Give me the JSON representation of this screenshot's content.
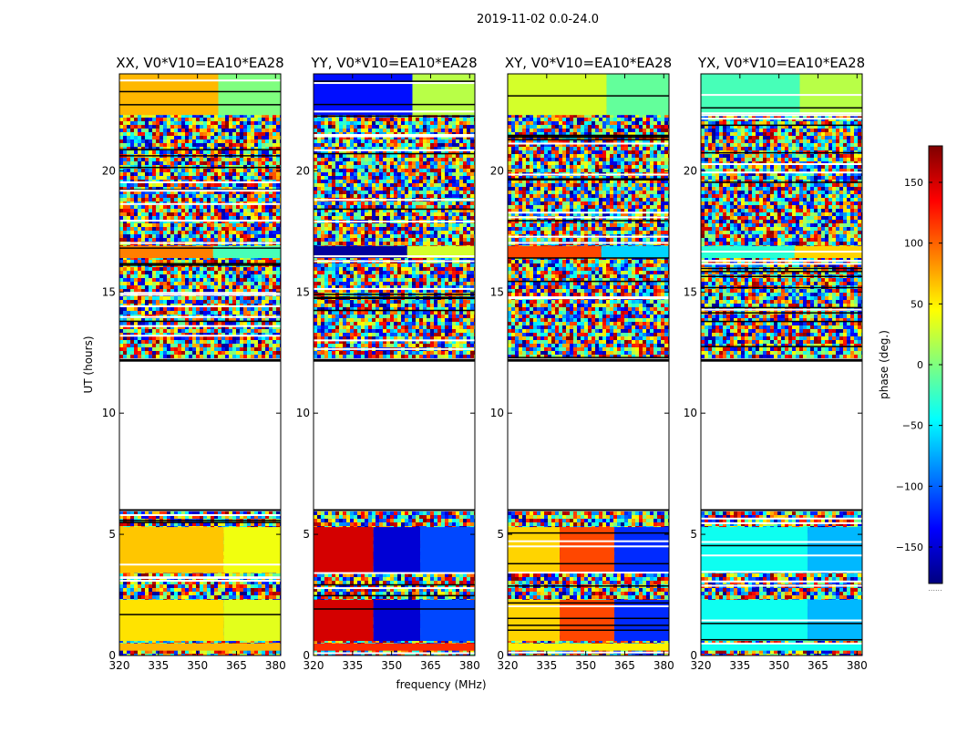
{
  "figure": {
    "suptitle": "2019-11-02 0.0-24.0"
  },
  "colors": {
    "jet": [
      "#00007f",
      "#0000ff",
      "#007fff",
      "#00ffff",
      "#7fff7f",
      "#ffff00",
      "#ff7f00",
      "#ff0000",
      "#7f0000"
    ]
  },
  "chart_data": {
    "type": "heatmap",
    "description_units": "phase in degrees vs frequency (MHz) and UT (hours)",
    "xlabel": "frequency (MHz)",
    "ylabel": "UT (hours)",
    "xlim": [
      320,
      382
    ],
    "ylim": [
      0,
      24
    ],
    "xticks": [
      320,
      335,
      350,
      365,
      380
    ],
    "yticks": [
      0,
      5,
      10,
      15,
      20
    ],
    "clim": [
      -180,
      180
    ],
    "colorbar": {
      "label": "phase (deg.)",
      "ticks": [
        150,
        100,
        50,
        0,
        -50,
        -100,
        -150
      ],
      "tick_labels": [
        "150",
        "100",
        "50",
        "0",
        "−50",
        "−100",
        "−150"
      ]
    },
    "colorbar_footer": "......",
    "data_gap_hours": [
      6.0,
      12.2
    ],
    "panels": [
      {
        "title": "XX, V0*V10=EA10*EA28",
        "bands": [
          {
            "t0": 0.2,
            "t1": 0.5,
            "segments": [
              {
                "f0": 320,
                "f1": 382,
                "phase": 70
              }
            ]
          },
          {
            "t0": 0.6,
            "t1": 2.3,
            "segments": [
              {
                "f0": 320,
                "f1": 360,
                "phase": 55
              },
              {
                "f0": 360,
                "f1": 382,
                "phase": 35
              }
            ]
          },
          {
            "t0": 3.4,
            "t1": 5.3,
            "segments": [
              {
                "f0": 320,
                "f1": 360,
                "phase": 65
              },
              {
                "f0": 360,
                "f1": 382,
                "phase": 40
              }
            ]
          },
          {
            "t0": 16.4,
            "t1": 16.9,
            "segments": [
              {
                "f0": 320,
                "f1": 356,
                "phase": 90
              },
              {
                "f0": 356,
                "f1": 382,
                "phase": -20
              }
            ]
          },
          {
            "t0": 22.3,
            "t1": 24.0,
            "segments": [
              {
                "f0": 320,
                "f1": 358,
                "phase": 70
              },
              {
                "f0": 358,
                "f1": 382,
                "phase": 0
              }
            ]
          }
        ]
      },
      {
        "title": "YY, V0*V10=EA10*EA28",
        "bands": [
          {
            "t0": 0.2,
            "t1": 0.5,
            "segments": [
              {
                "f0": 320,
                "f1": 382,
                "phase": 120
              }
            ]
          },
          {
            "t0": 0.6,
            "t1": 2.3,
            "segments": [
              {
                "f0": 320,
                "f1": 343,
                "phase": 150
              },
              {
                "f0": 343,
                "f1": 361,
                "phase": -150
              },
              {
                "f0": 361,
                "f1": 382,
                "phase": -110
              }
            ]
          },
          {
            "t0": 3.4,
            "t1": 5.3,
            "segments": [
              {
                "f0": 320,
                "f1": 343,
                "phase": 150
              },
              {
                "f0": 343,
                "f1": 361,
                "phase": -150
              },
              {
                "f0": 361,
                "f1": 382,
                "phase": -110
              }
            ]
          },
          {
            "t0": 16.4,
            "t1": 16.9,
            "segments": [
              {
                "f0": 320,
                "f1": 356,
                "phase": -170
              },
              {
                "f0": 356,
                "f1": 382,
                "phase": 30
              }
            ]
          },
          {
            "t0": 22.3,
            "t1": 24.0,
            "segments": [
              {
                "f0": 320,
                "f1": 358,
                "phase": -130
              },
              {
                "f0": 358,
                "f1": 382,
                "phase": 20
              }
            ]
          }
        ]
      },
      {
        "title": "XY, V0*V10=EA10*EA28",
        "bands": [
          {
            "t0": 0.2,
            "t1": 0.5,
            "segments": [
              {
                "f0": 320,
                "f1": 382,
                "phase": 50
              }
            ]
          },
          {
            "t0": 0.6,
            "t1": 2.3,
            "segments": [
              {
                "f0": 320,
                "f1": 340,
                "phase": 60
              },
              {
                "f0": 340,
                "f1": 361,
                "phase": 110
              },
              {
                "f0": 361,
                "f1": 382,
                "phase": -120
              }
            ]
          },
          {
            "t0": 3.4,
            "t1": 5.3,
            "segments": [
              {
                "f0": 320,
                "f1": 340,
                "phase": 60
              },
              {
                "f0": 340,
                "f1": 361,
                "phase": 110
              },
              {
                "f0": 361,
                "f1": 382,
                "phase": -120
              }
            ]
          },
          {
            "t0": 16.4,
            "t1": 16.9,
            "segments": [
              {
                "f0": 320,
                "f1": 356,
                "phase": 110
              },
              {
                "f0": 356,
                "f1": 382,
                "phase": -60
              }
            ]
          },
          {
            "t0": 22.3,
            "t1": 24.0,
            "segments": [
              {
                "f0": 320,
                "f1": 358,
                "phase": 30
              },
              {
                "f0": 358,
                "f1": 382,
                "phase": -10
              }
            ]
          }
        ]
      },
      {
        "title": "YX, V0*V10=EA10*EA28",
        "bands": [
          {
            "t0": 0.2,
            "t1": 0.5,
            "segments": [
              {
                "f0": 320,
                "f1": 382,
                "phase": -40
              }
            ]
          },
          {
            "t0": 0.6,
            "t1": 2.3,
            "segments": [
              {
                "f0": 320,
                "f1": 361,
                "phase": -40
              },
              {
                "f0": 361,
                "f1": 382,
                "phase": -70
              }
            ]
          },
          {
            "t0": 3.4,
            "t1": 5.3,
            "segments": [
              {
                "f0": 320,
                "f1": 361,
                "phase": -40
              },
              {
                "f0": 361,
                "f1": 382,
                "phase": -70
              }
            ]
          },
          {
            "t0": 16.4,
            "t1": 16.9,
            "segments": [
              {
                "f0": 320,
                "f1": 356,
                "phase": -30
              },
              {
                "f0": 356,
                "f1": 382,
                "phase": 60
              }
            ]
          },
          {
            "t0": 22.3,
            "t1": 24.0,
            "segments": [
              {
                "f0": 320,
                "f1": 358,
                "phase": -20
              },
              {
                "f0": 358,
                "f1": 382,
                "phase": 20
              }
            ]
          }
        ]
      }
    ]
  }
}
